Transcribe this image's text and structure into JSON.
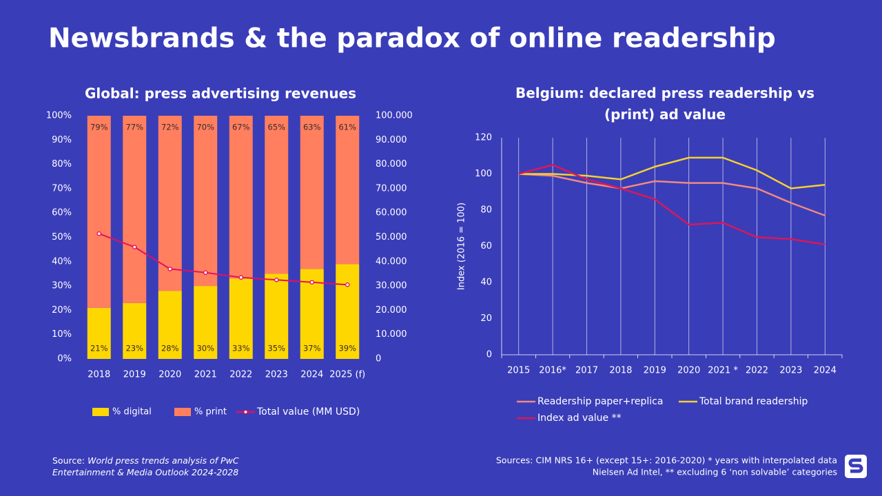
{
  "title": "Newsbrands & the paradox of online readership",
  "source_left": {
    "prefix": "Source:",
    "text": "World press trends analysis of PwC Entertainment & Media Outlook 2024-2028"
  },
  "source_right": [
    "Sources:  CIM NRS 16+ (except 15+: 2016-2020) * years  with interpolated data",
    "Nielsen Ad Intel, ** excluding 6 ‘non solvable’ categories"
  ],
  "chart_data": [
    {
      "type": "bar",
      "stacked": true,
      "title": "Global: press advertising revenues",
      "categories": [
        "2018",
        "2019",
        "2020",
        "2021",
        "2022",
        "2023",
        "2024",
        "2025 (f)"
      ],
      "series": [
        {
          "name": "% digital",
          "color": "#FFD700",
          "values": [
            21,
            23,
            28,
            30,
            33,
            35,
            37,
            39
          ],
          "value_labels": [
            "21%",
            "23%",
            "28%",
            "30%",
            "33%",
            "35%",
            "37%",
            "39%"
          ]
        },
        {
          "name": "% print",
          "color": "#FF7F5E",
          "values": [
            79,
            77,
            72,
            70,
            67,
            65,
            63,
            61
          ],
          "value_labels": [
            "79%",
            "77%",
            "72%",
            "70%",
            "67%",
            "65%",
            "63%",
            "61%"
          ]
        },
        {
          "name": "Total value (MM USD)",
          "color": "#E0115F",
          "axis": "y2",
          "values": [
            51500,
            46000,
            37000,
            35500,
            33500,
            32500,
            31500,
            30500
          ]
        }
      ],
      "ylim": [
        0,
        100
      ],
      "yticks": [
        {
          "value": 0,
          "label": "0%"
        },
        {
          "value": 10,
          "label": "10%"
        },
        {
          "value": 20,
          "label": "20%"
        },
        {
          "value": 30,
          "label": "30%"
        },
        {
          "value": 40,
          "label": "40%"
        },
        {
          "value": 50,
          "label": "50%"
        },
        {
          "value": 60,
          "label": "60%"
        },
        {
          "value": 70,
          "label": "70%"
        },
        {
          "value": 80,
          "label": "80%"
        },
        {
          "value": 90,
          "label": "90%"
        },
        {
          "value": 100,
          "label": "100%"
        }
      ],
      "y2lim": [
        0,
        100000
      ],
      "y2ticks": [
        0,
        {
          "value": 10000,
          "label": "10.000"
        },
        {
          "value": 20000,
          "label": "20.000"
        },
        {
          "value": 30000,
          "label": "30.000"
        },
        {
          "value": 40000,
          "label": "40.000"
        },
        {
          "value": 50000,
          "label": "50.000"
        },
        {
          "value": 60000,
          "label": "60.000"
        },
        {
          "value": 70000,
          "label": "70.000"
        },
        {
          "value": 80000,
          "label": "80.000"
        },
        {
          "value": 90000,
          "label": "90.000"
        },
        {
          "value": 100000,
          "label": "100.000"
        }
      ]
    },
    {
      "type": "line",
      "title": "Belgium:  declared press readership vs (print) ad value",
      "ylabel": "Index (2016 = 100)",
      "categories": [
        "2015",
        "2016*",
        "2017",
        "2018",
        "2019",
        "2020",
        "2021 *",
        "2022",
        "2023",
        "2024"
      ],
      "series": [
        {
          "name": "Readership paper+replica",
          "color": "#F08A80",
          "values": [
            100,
            99,
            95,
            92,
            96,
            95,
            95,
            92,
            84,
            77
          ]
        },
        {
          "name": "Total brand readership",
          "color": "#F5D130",
          "values": [
            100,
            100,
            99,
            97,
            104,
            109,
            109,
            102,
            92,
            94
          ]
        },
        {
          "name": "Index ad value **",
          "color": "#D9185A",
          "values": [
            100,
            105,
            97,
            92,
            86,
            72,
            73,
            65,
            64,
            61
          ]
        }
      ],
      "ylim": [
        0,
        120
      ],
      "yticks": [
        0,
        20,
        40,
        60,
        80,
        100,
        120
      ],
      "grid": "x"
    }
  ]
}
